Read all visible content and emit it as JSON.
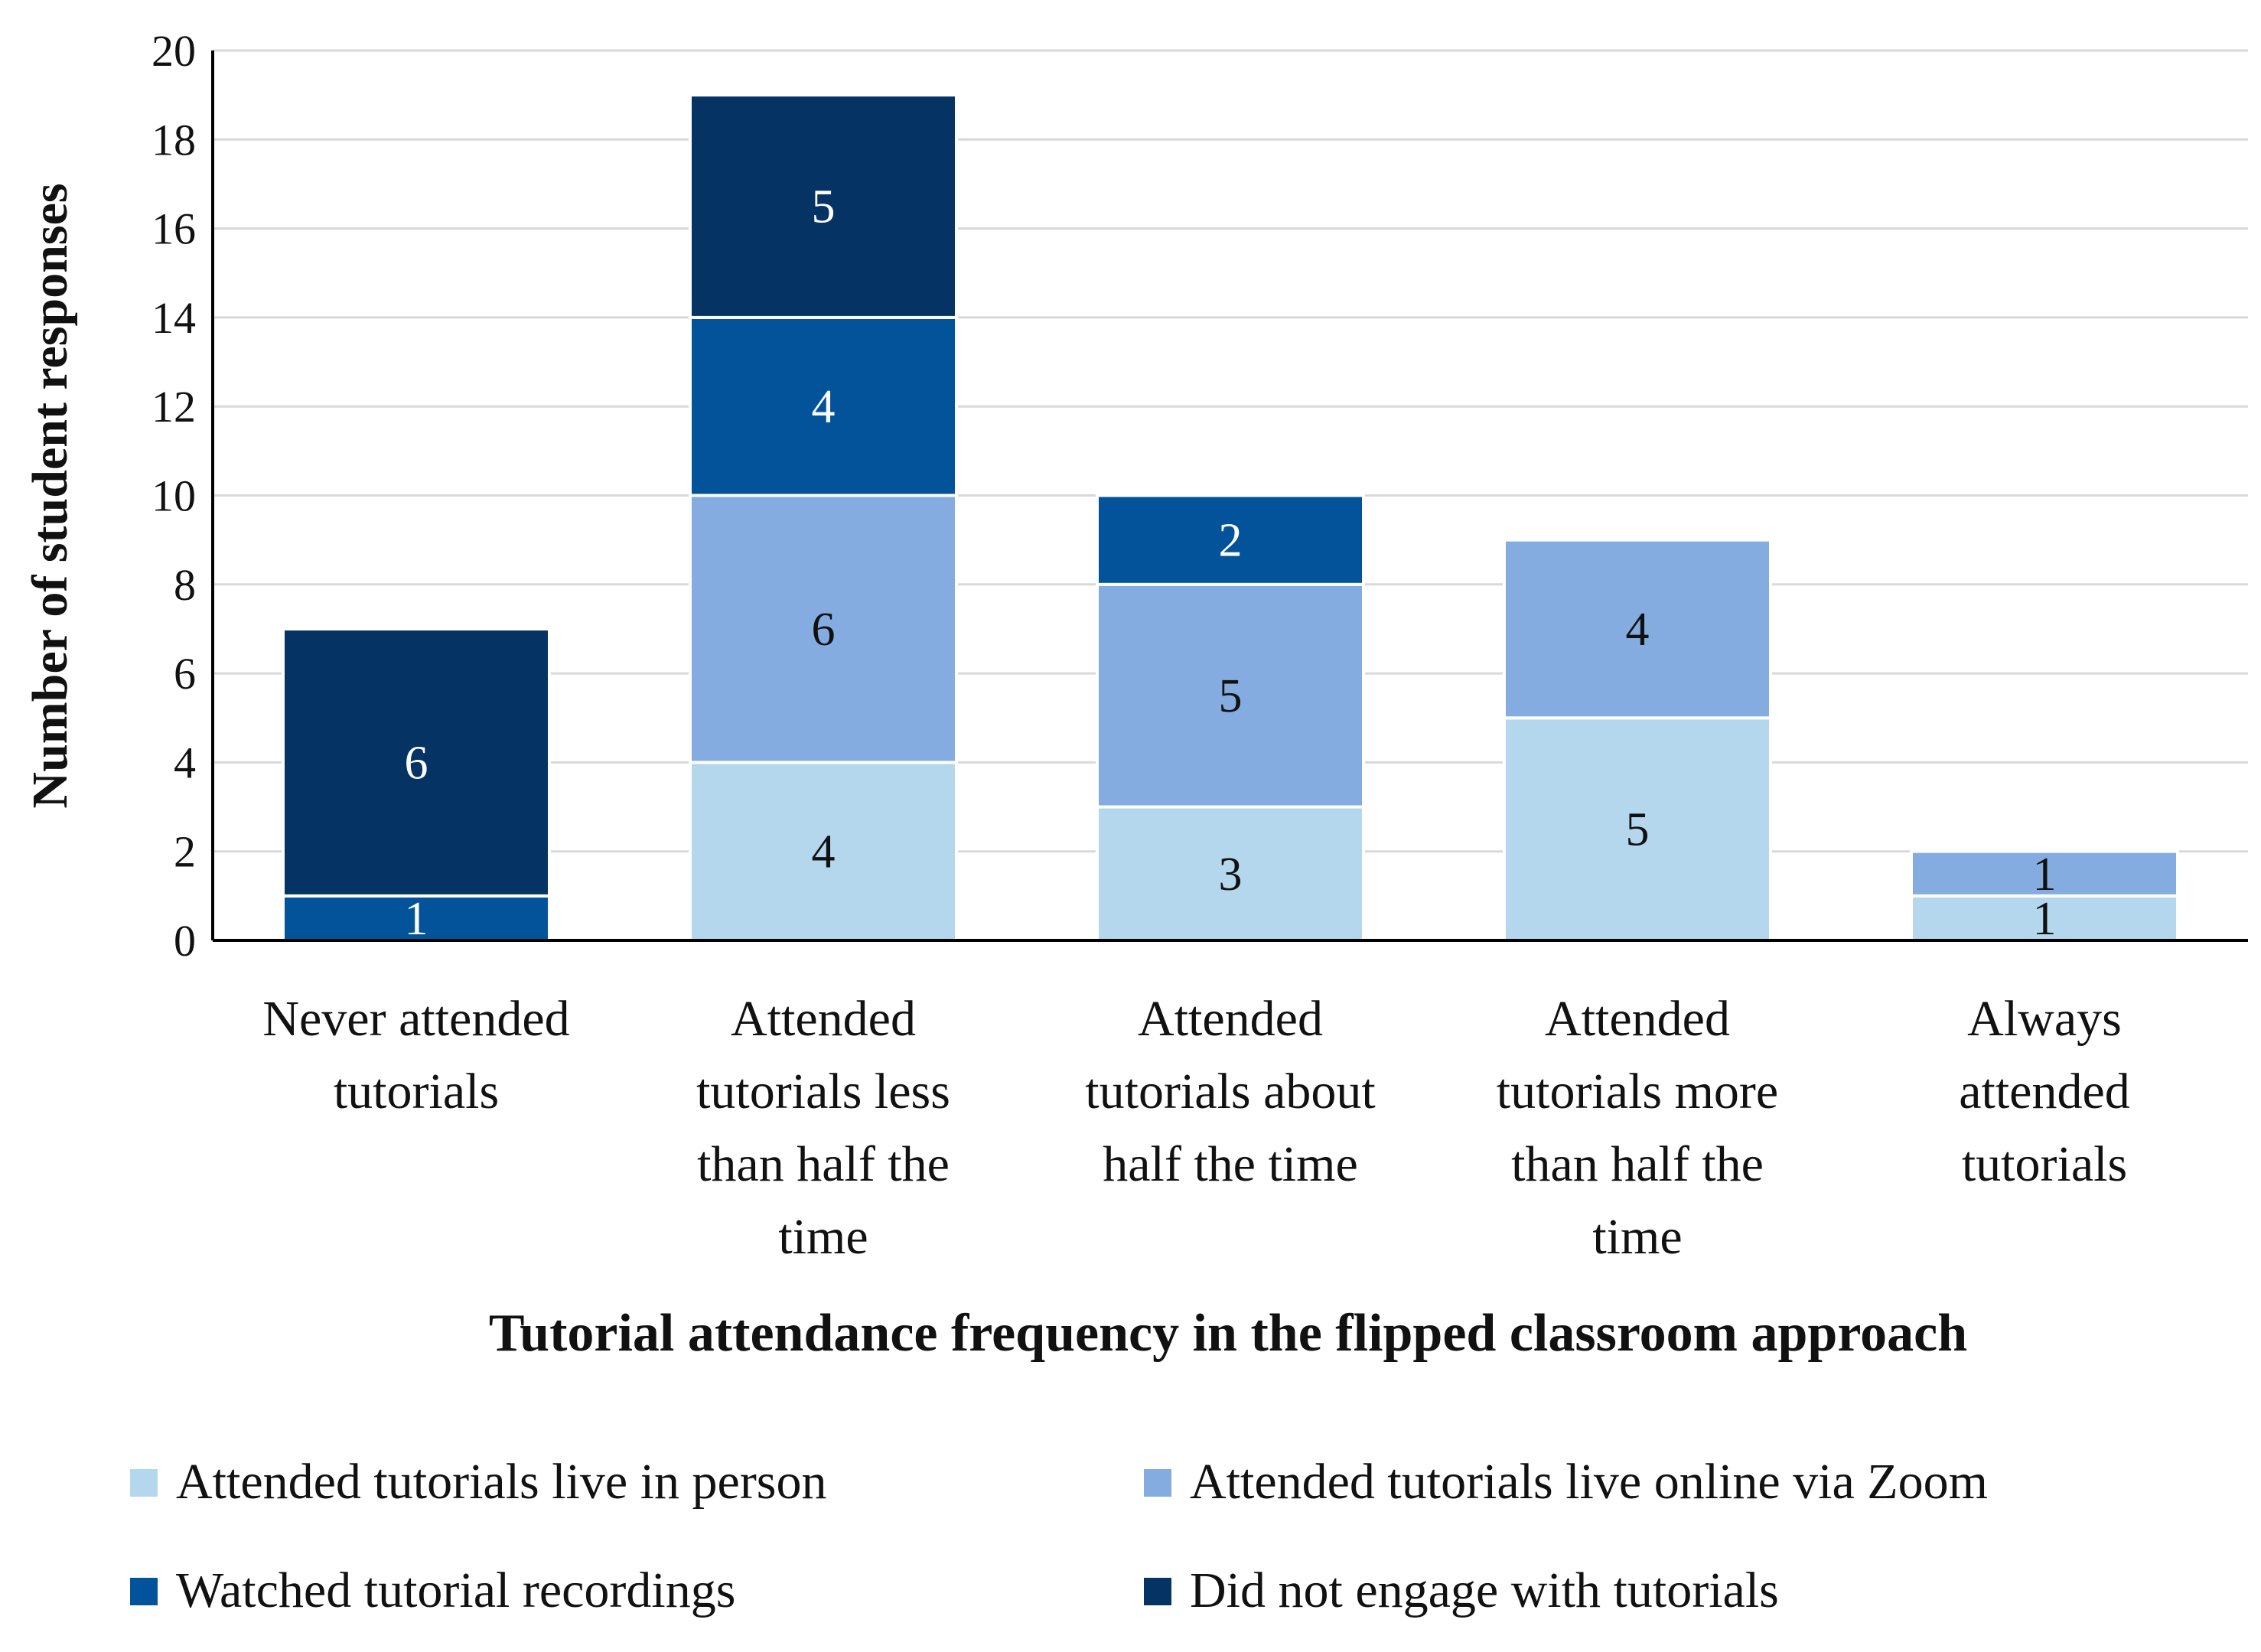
{
  "chart_data": {
    "type": "bar",
    "stacked": true,
    "title": "",
    "xlabel": "Tutorial attendance frequency in the flipped classroom approach",
    "ylabel": "Number of student responses",
    "ylim": [
      0,
      20
    ],
    "yticks": [
      0,
      2,
      4,
      6,
      8,
      10,
      12,
      14,
      16,
      18,
      20
    ],
    "grid": true,
    "legend_position": "bottom",
    "categories": [
      [
        "Never attended",
        "tutorials"
      ],
      [
        "Attended",
        "tutorials less",
        "than half the",
        "time"
      ],
      [
        "Attended",
        "tutorials about",
        "half the time"
      ],
      [
        "Attended",
        "tutorials more",
        "than half the",
        "time"
      ],
      [
        "Always",
        "attended",
        "tutorials"
      ]
    ],
    "series": [
      {
        "name": "Attended tutorials live in person",
        "color": "#b4d7ee",
        "label_color": "#111111",
        "values": [
          0,
          4,
          3,
          5,
          1
        ]
      },
      {
        "name": "Attended tutorials live online via Zoom",
        "color": "#84ace0",
        "label_color": "#111111",
        "values": [
          0,
          6,
          5,
          4,
          1
        ]
      },
      {
        "name": "Watched tutorial recordings",
        "color": "#03539b",
        "label_color": "#ffffff",
        "values": [
          1,
          4,
          2,
          0,
          0
        ]
      },
      {
        "name": "Did not engage with tutorials",
        "color": "#053464",
        "label_color": "#ffffff",
        "values": [
          6,
          5,
          0,
          0,
          0
        ]
      }
    ]
  }
}
